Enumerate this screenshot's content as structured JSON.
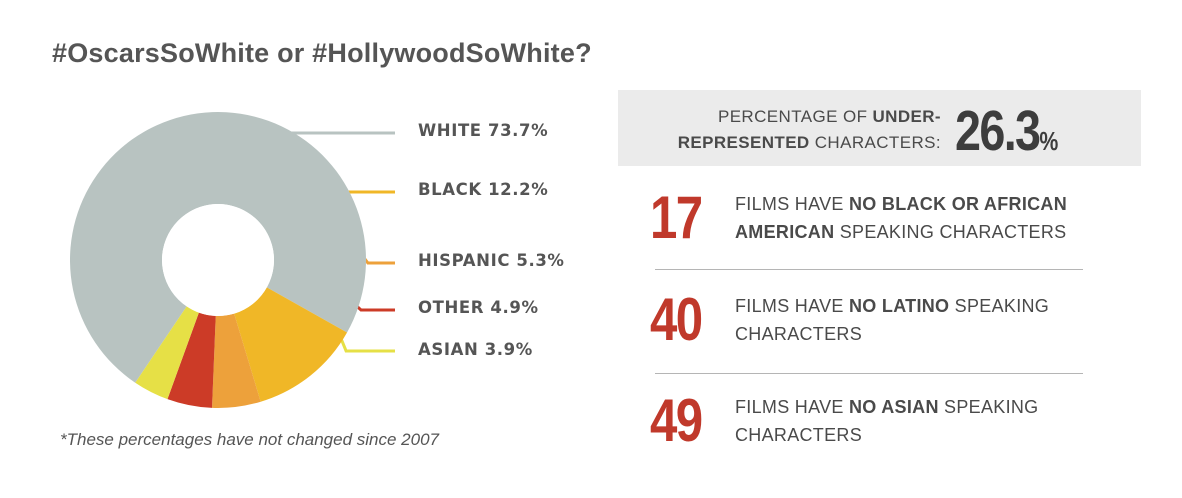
{
  "title": "#OscarsSoWhite or #HollywoodSoWhite?",
  "footnote": "*These percentages have not changed since 2007",
  "colors": {
    "white": "#b8c3c1",
    "black": "#f0b727",
    "hispanic": "#eda13b",
    "other": "#cc3b27",
    "asian": "#e6e046",
    "highlight_red": "#c0392b"
  },
  "chart_data": {
    "type": "pie",
    "style": "donut",
    "categories": [
      "WHITE",
      "BLACK",
      "HISPANIC",
      "OTHER",
      "ASIAN"
    ],
    "values": [
      73.7,
      12.2,
      5.3,
      4.9,
      3.9
    ],
    "unit": "%",
    "labels": [
      "WHITE 73.7%",
      "BLACK 12.2%",
      "HISPANIC 5.3%",
      "OTHER 4.9%",
      "ASIAN 3.9%"
    ]
  },
  "percentage": {
    "label_line1_plain": "PERCENTAGE OF ",
    "label_line1_bold": "UNDER-",
    "label_line2_bold": "REPRESENTED",
    "label_line2_plain": " CHARACTERS:",
    "value": "26.3",
    "unit": "%"
  },
  "stats": [
    {
      "number": "17",
      "prefix": "FILMS HAVE ",
      "bold": "NO BLACK OR AFRICAN AMERICAN",
      "suffix": " SPEAKING CHARACTERS"
    },
    {
      "number": "40",
      "prefix": "FILMS HAVE ",
      "bold": "NO LATINO",
      "suffix": " SPEAKING CHARACTERS"
    },
    {
      "number": "49",
      "prefix": "FILMS HAVE ",
      "bold": "NO ASIAN",
      "suffix": " SPEAKING CHARACTERS"
    }
  ]
}
